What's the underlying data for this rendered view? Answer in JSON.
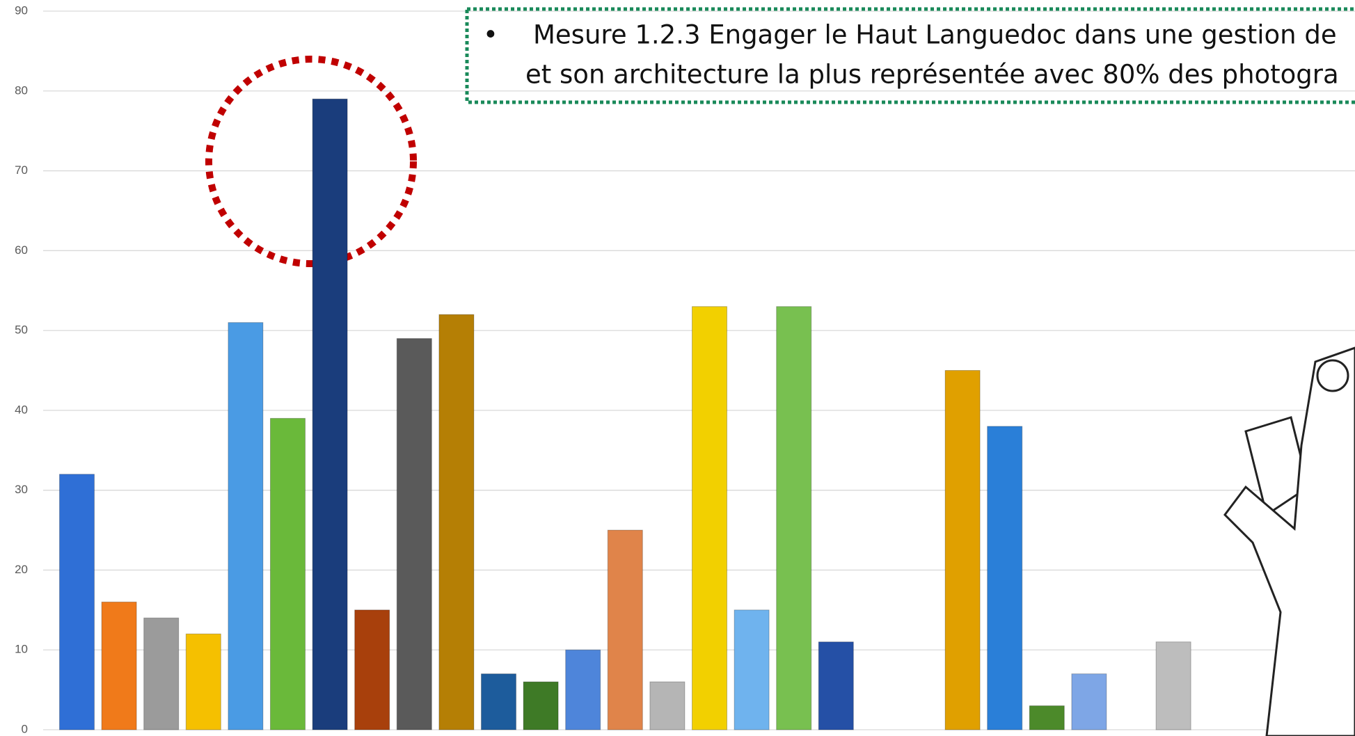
{
  "chart_data": {
    "type": "bar",
    "categories": [
      null,
      null,
      null,
      null,
      null,
      null,
      null,
      null,
      null,
      null,
      null,
      null,
      null,
      null,
      null,
      null,
      null,
      null,
      null,
      null,
      null,
      null,
      null,
      null,
      null,
      null,
      null
    ],
    "values": [
      32,
      16,
      14,
      12,
      51,
      39,
      79,
      15,
      49,
      52,
      7,
      6,
      10,
      25,
      6,
      53,
      15,
      53,
      11,
      0,
      0,
      45,
      38,
      3,
      7,
      0,
      11
    ],
    "colors": [
      "#2f6fd6",
      "#f07a1a",
      "#9b9b9b",
      "#f5c000",
      "#4a9be4",
      "#6ab93a",
      "#1a3d7c",
      "#a8400c",
      "#5a5a5a",
      "#b57f05",
      "#1d5c9c",
      "#3e7a26",
      "#4e85da",
      "#e0844a",
      "#b5b5b5",
      "#f2d000",
      "#6fb3ee",
      "#78c050",
      "#2550a6",
      "#999999",
      "#999999",
      "#e0a000",
      "#2a7fd8",
      "#4c8a2a",
      "#7ea6e6",
      "#999999",
      "#bdbdbd"
    ],
    "ylim": [
      0,
      90
    ],
    "yticks": [
      0,
      10,
      20,
      30,
      40,
      50,
      60,
      70,
      80,
      90
    ],
    "grid": true,
    "annotation": {
      "bullet": "•",
      "lines": [
        "Mesure 1.2.3 Engager le Haut Languedoc dans une gestion de",
        "et son architecture la plus représentée avec 80% des photogra"
      ]
    }
  }
}
